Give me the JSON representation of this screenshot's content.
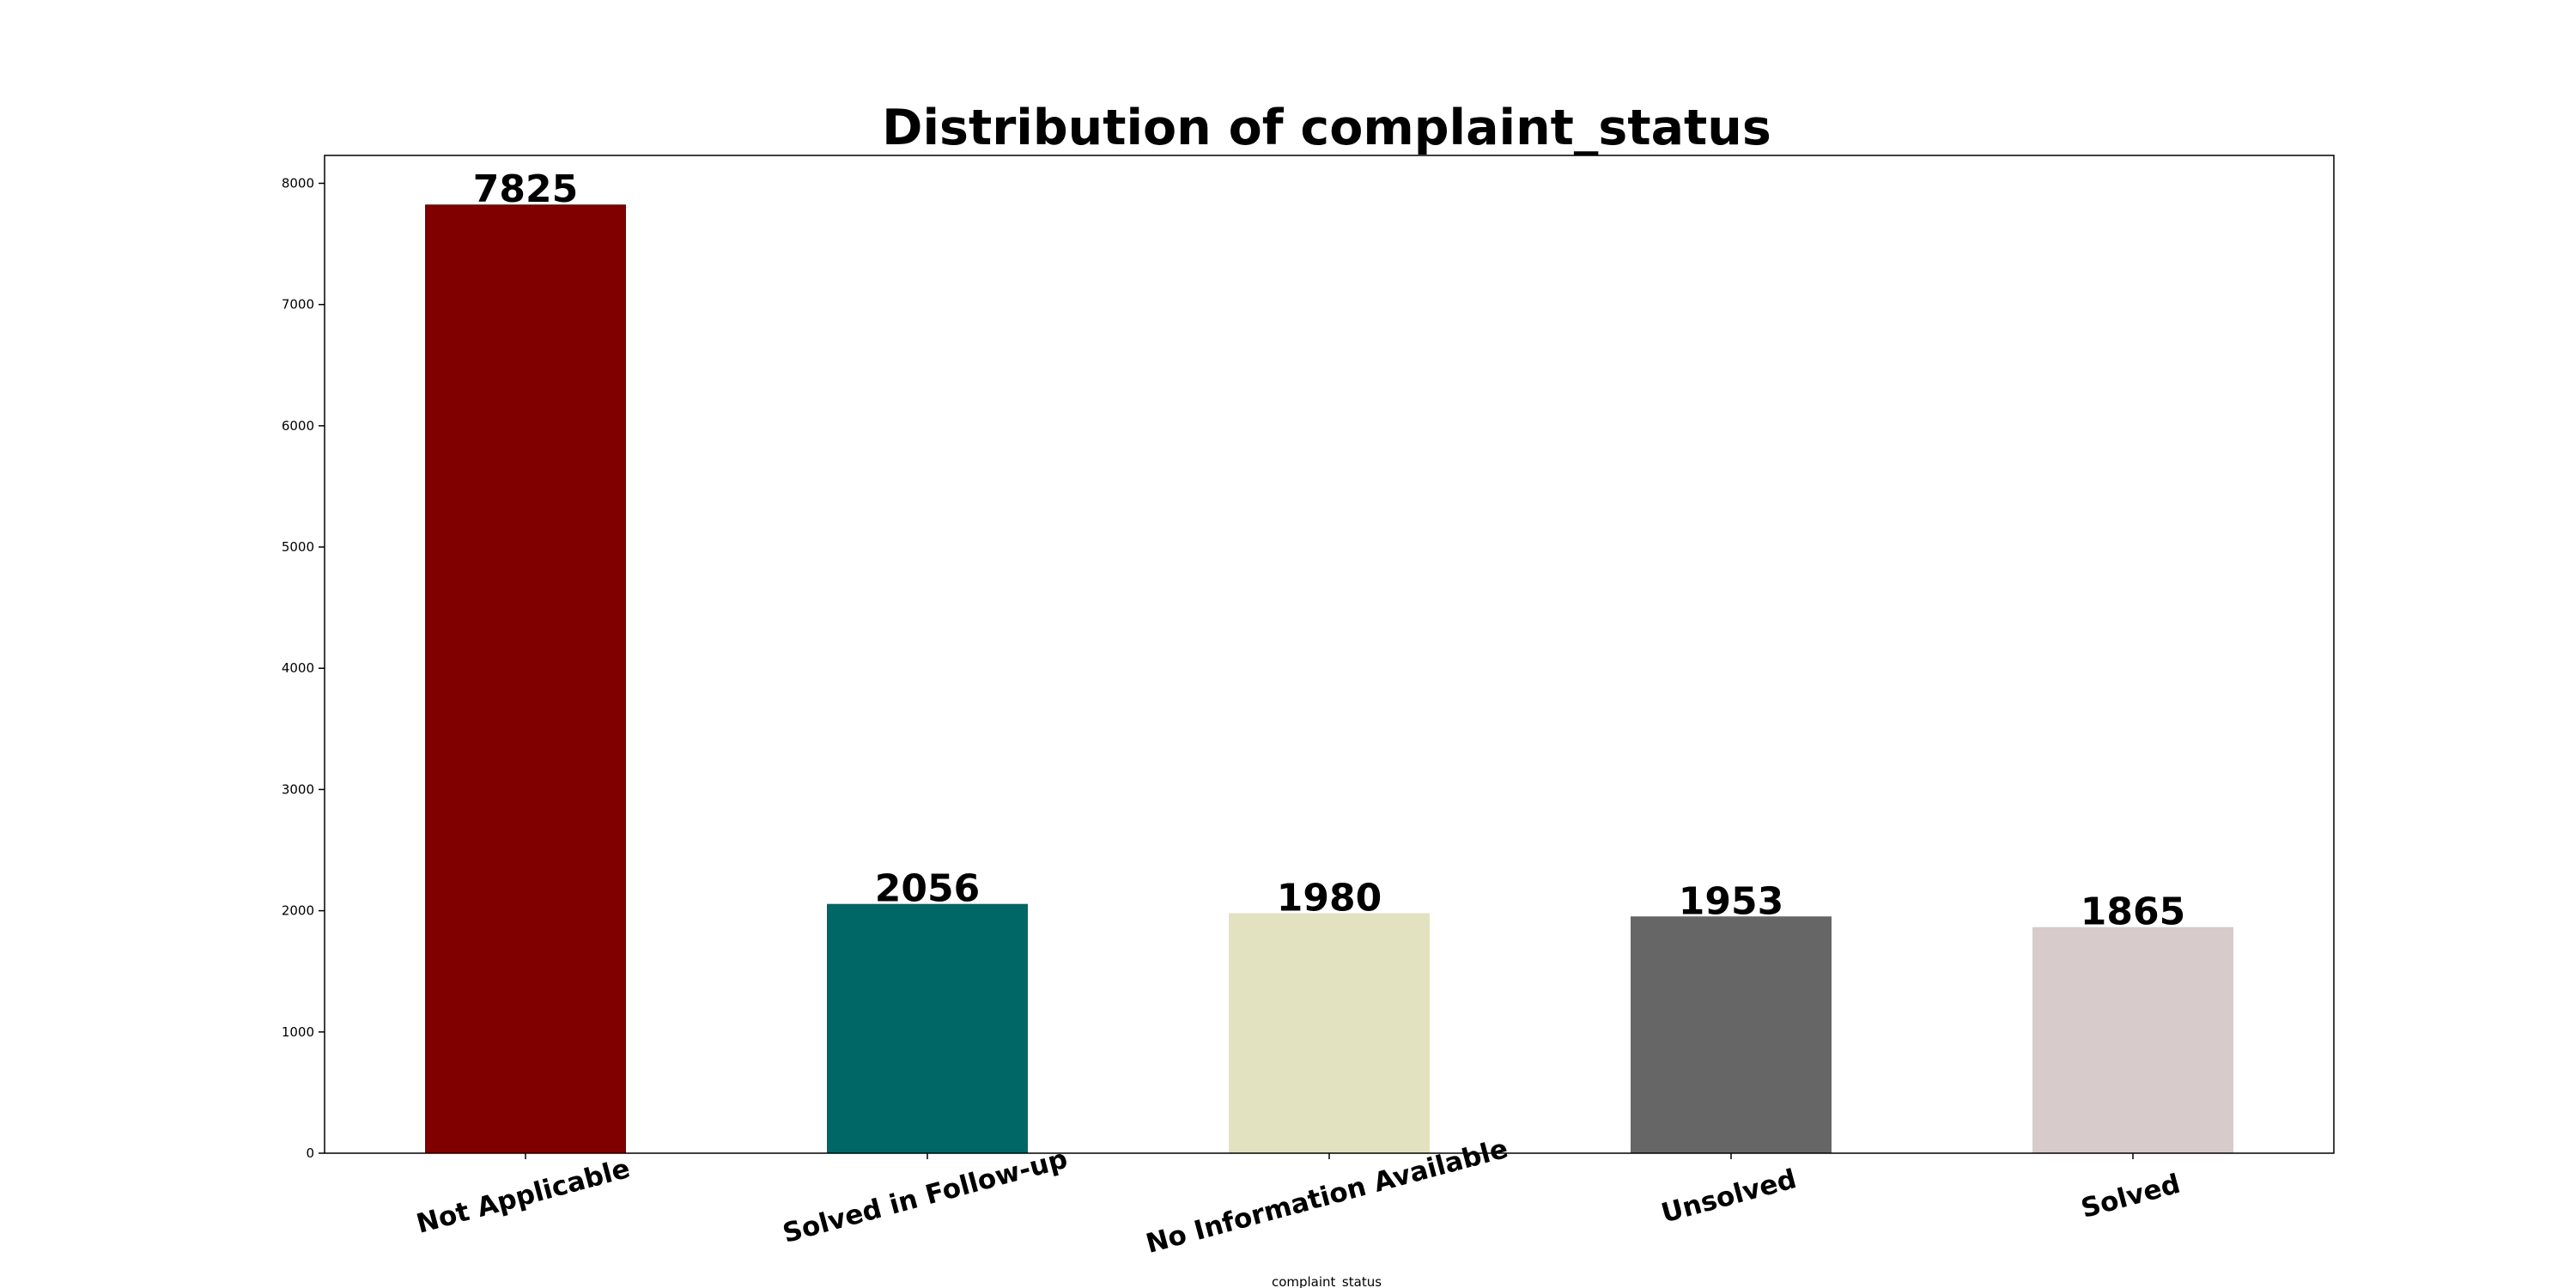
{
  "chart_data": {
    "type": "bar",
    "title": "Distribution of complaint_status",
    "xlabel": "complaint_status",
    "ylabel": "",
    "categories": [
      "Not Applicable",
      "Solved in Follow-up",
      "No Information Available",
      "Unsolved",
      "Solved"
    ],
    "values": [
      7825,
      2056,
      1980,
      1953,
      1865
    ],
    "colors": [
      "#800000",
      "#006666",
      "#e2e2c0",
      "#666666",
      "#d7cbcb"
    ],
    "ylim": [
      0,
      8230
    ],
    "yticks": [
      0,
      1000,
      2000,
      3000,
      4000,
      5000,
      6000,
      7000,
      8000
    ],
    "xtick_rotation_deg": -15,
    "grid": false,
    "legend": "none"
  }
}
